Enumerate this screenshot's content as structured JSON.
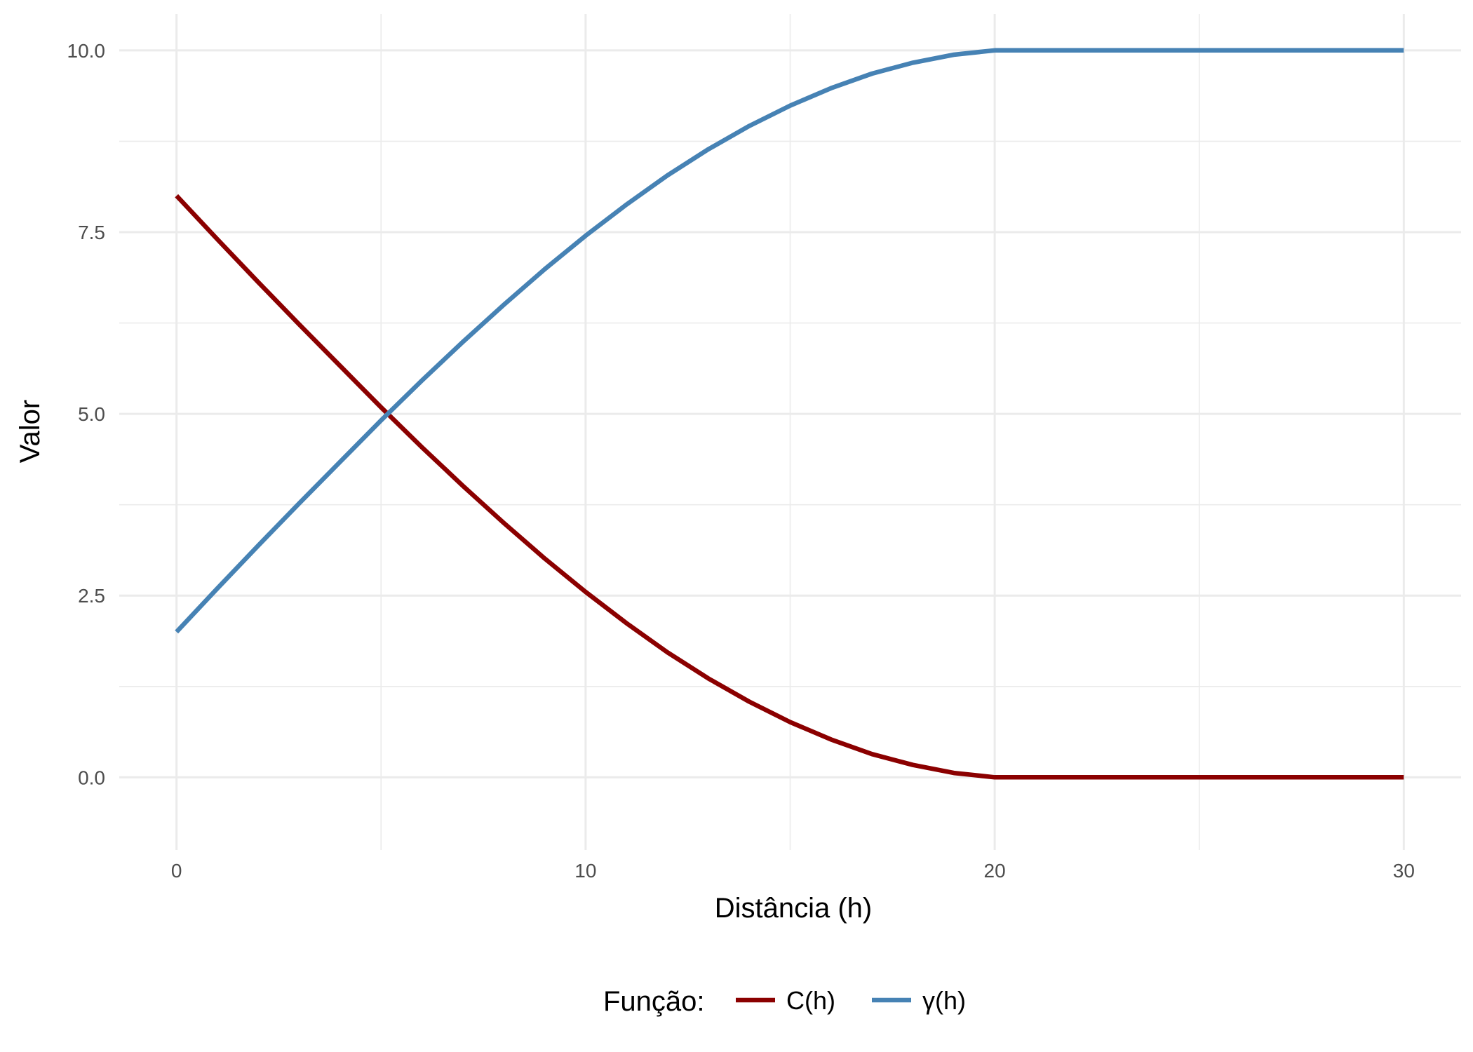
{
  "chart_data": {
    "type": "line",
    "title": "",
    "xlabel": "Distância (h)",
    "ylabel": "Valor",
    "xlim": [
      -1.4,
      31.4
    ],
    "ylim": [
      -1.0,
      10.5
    ],
    "x_ticks": [
      0,
      10,
      20,
      30
    ],
    "x_tick_labels": [
      "0",
      "10",
      "20",
      "30"
    ],
    "x_minor_ticks": [
      5,
      15,
      25
    ],
    "y_ticks": [
      0,
      2.5,
      5,
      7.5,
      10
    ],
    "y_tick_labels": [
      "0.0",
      "2.5",
      "5.0",
      "7.5",
      "10.0"
    ],
    "y_minor_ticks": [
      1.25,
      3.75,
      6.25,
      8.75
    ],
    "grid": true,
    "legend": {
      "title": "Função:",
      "position": "bottom"
    },
    "series": [
      {
        "name": "C(h)",
        "color": "#8B0000",
        "x": [
          0,
          1,
          2,
          3,
          4,
          5,
          6,
          7,
          8,
          9,
          10,
          11,
          12,
          13,
          14,
          15,
          16,
          17,
          18,
          19,
          20,
          21,
          22,
          23,
          24,
          25,
          26,
          27,
          28,
          29,
          30
        ],
        "y": [
          8.0,
          7.4,
          6.81,
          6.23,
          5.66,
          5.09,
          4.54,
          4.01,
          3.5,
          3.01,
          2.55,
          2.12,
          1.72,
          1.36,
          1.04,
          0.76,
          0.52,
          0.32,
          0.17,
          0.06,
          0.0,
          0.0,
          0.0,
          0.0,
          0.0,
          0.0,
          0.0,
          0.0,
          0.0,
          0.0,
          0.0
        ]
      },
      {
        "name": "γ(h)",
        "color": "#4682B4",
        "x": [
          0,
          1,
          2,
          3,
          4,
          5,
          6,
          7,
          8,
          9,
          10,
          11,
          12,
          13,
          14,
          15,
          16,
          17,
          18,
          19,
          20,
          21,
          22,
          23,
          24,
          25,
          26,
          27,
          28,
          29,
          30
        ],
        "y": [
          2.0,
          2.6,
          3.19,
          3.77,
          4.34,
          4.91,
          5.46,
          5.99,
          6.5,
          6.99,
          7.45,
          7.88,
          8.28,
          8.64,
          8.96,
          9.24,
          9.48,
          9.68,
          9.83,
          9.94,
          10.0,
          10.0,
          10.0,
          10.0,
          10.0,
          10.0,
          10.0,
          10.0,
          10.0,
          10.0,
          10.0
        ]
      }
    ]
  }
}
